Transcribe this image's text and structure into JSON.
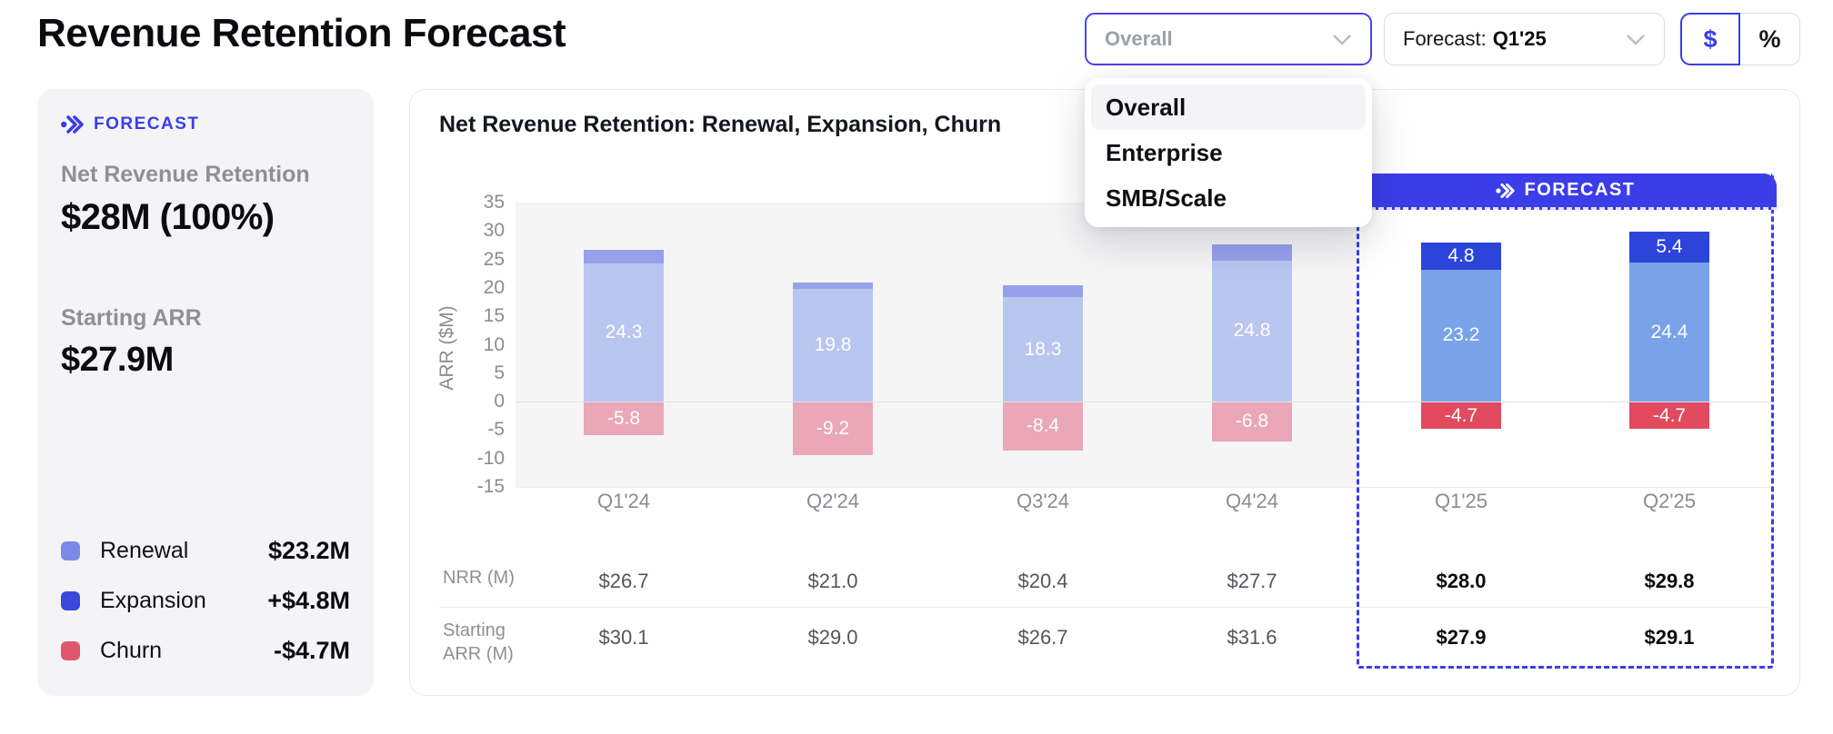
{
  "page": {
    "title": "Revenue Retention Forecast"
  },
  "header": {
    "segment_select": {
      "value": "Overall",
      "options": [
        "Overall",
        "Enterprise",
        "SMB/Scale"
      ],
      "selected_option": "Overall"
    },
    "forecast_select": {
      "label": "Forecast:",
      "value": "Q1'25"
    },
    "unit_toggle": {
      "dollar": "$",
      "percent": "%",
      "selected": "$"
    }
  },
  "summary_card": {
    "badge": "FORECAST",
    "nrr_label": "Net Revenue Retention",
    "nrr_value": "$28M (100%)",
    "arr_label": "Starting ARR",
    "arr_value": "$27.9M",
    "legend": [
      {
        "name": "Renewal",
        "value": "$23.2M",
        "color": "#7b8ae8"
      },
      {
        "name": "Expansion",
        "value": "+$4.8M",
        "color": "#3a49dc"
      },
      {
        "name": "Churn",
        "value": "-$4.7M",
        "color": "#e0566f"
      }
    ]
  },
  "chart_data": {
    "type": "bar",
    "stacked": true,
    "title": "Net Revenue Retention: Renewal, Expansion, Churn",
    "ylabel": "ARR ($M)",
    "ylim": [
      -15,
      35
    ],
    "yticks": [
      35,
      30,
      25,
      20,
      15,
      10,
      5,
      0,
      -5,
      -10,
      -15
    ],
    "grid": false,
    "categories": [
      "Q1'24",
      "Q2'24",
      "Q3'24",
      "Q4'24",
      "Q1'25",
      "Q2'25"
    ],
    "series": [
      {
        "name": "Renewal",
        "values": [
          24.3,
          19.8,
          18.3,
          24.8,
          23.2,
          24.4
        ]
      },
      {
        "name": "Expansion",
        "values": [
          2.4,
          1.2,
          2.1,
          2.9,
          4.8,
          5.4
        ]
      },
      {
        "name": "Churn",
        "values": [
          -5.8,
          -9.2,
          -8.4,
          -6.8,
          -4.7,
          -4.7
        ]
      }
    ],
    "bar_labels": {
      "renewal": [
        "24.3",
        "19.8",
        "18.3",
        "24.8",
        "23.2",
        "24.4"
      ],
      "expansion": [
        "",
        "",
        "",
        "",
        "4.8",
        "5.4"
      ],
      "churn": [
        "-5.8",
        "-9.2",
        "-8.4",
        "-6.8",
        "-4.7",
        "-4.7"
      ]
    },
    "forecast_from_index": 4,
    "forecast_banner": "FORECAST",
    "table": {
      "rows": [
        {
          "label": "NRR (M)",
          "values": [
            "$26.7",
            "$21.0",
            "$20.4",
            "$27.7",
            "$28.0",
            "$29.8"
          ]
        },
        {
          "label": "Starting ARR (M)",
          "values": [
            "$30.1",
            "$29.0",
            "$26.7",
            "$31.6",
            "$27.9",
            "$29.1"
          ]
        }
      ]
    },
    "colors": {
      "historical": {
        "renewal": "#b9c6ef",
        "expansion": "#96a1eb",
        "churn": "#e9a7b7"
      },
      "forecast": {
        "renewal": "#7aa2e9",
        "expansion": "#2c44da",
        "churn": "#e24a60"
      },
      "accent": "#3b3ee8",
      "plot_bg": "#f5f5f6"
    }
  }
}
